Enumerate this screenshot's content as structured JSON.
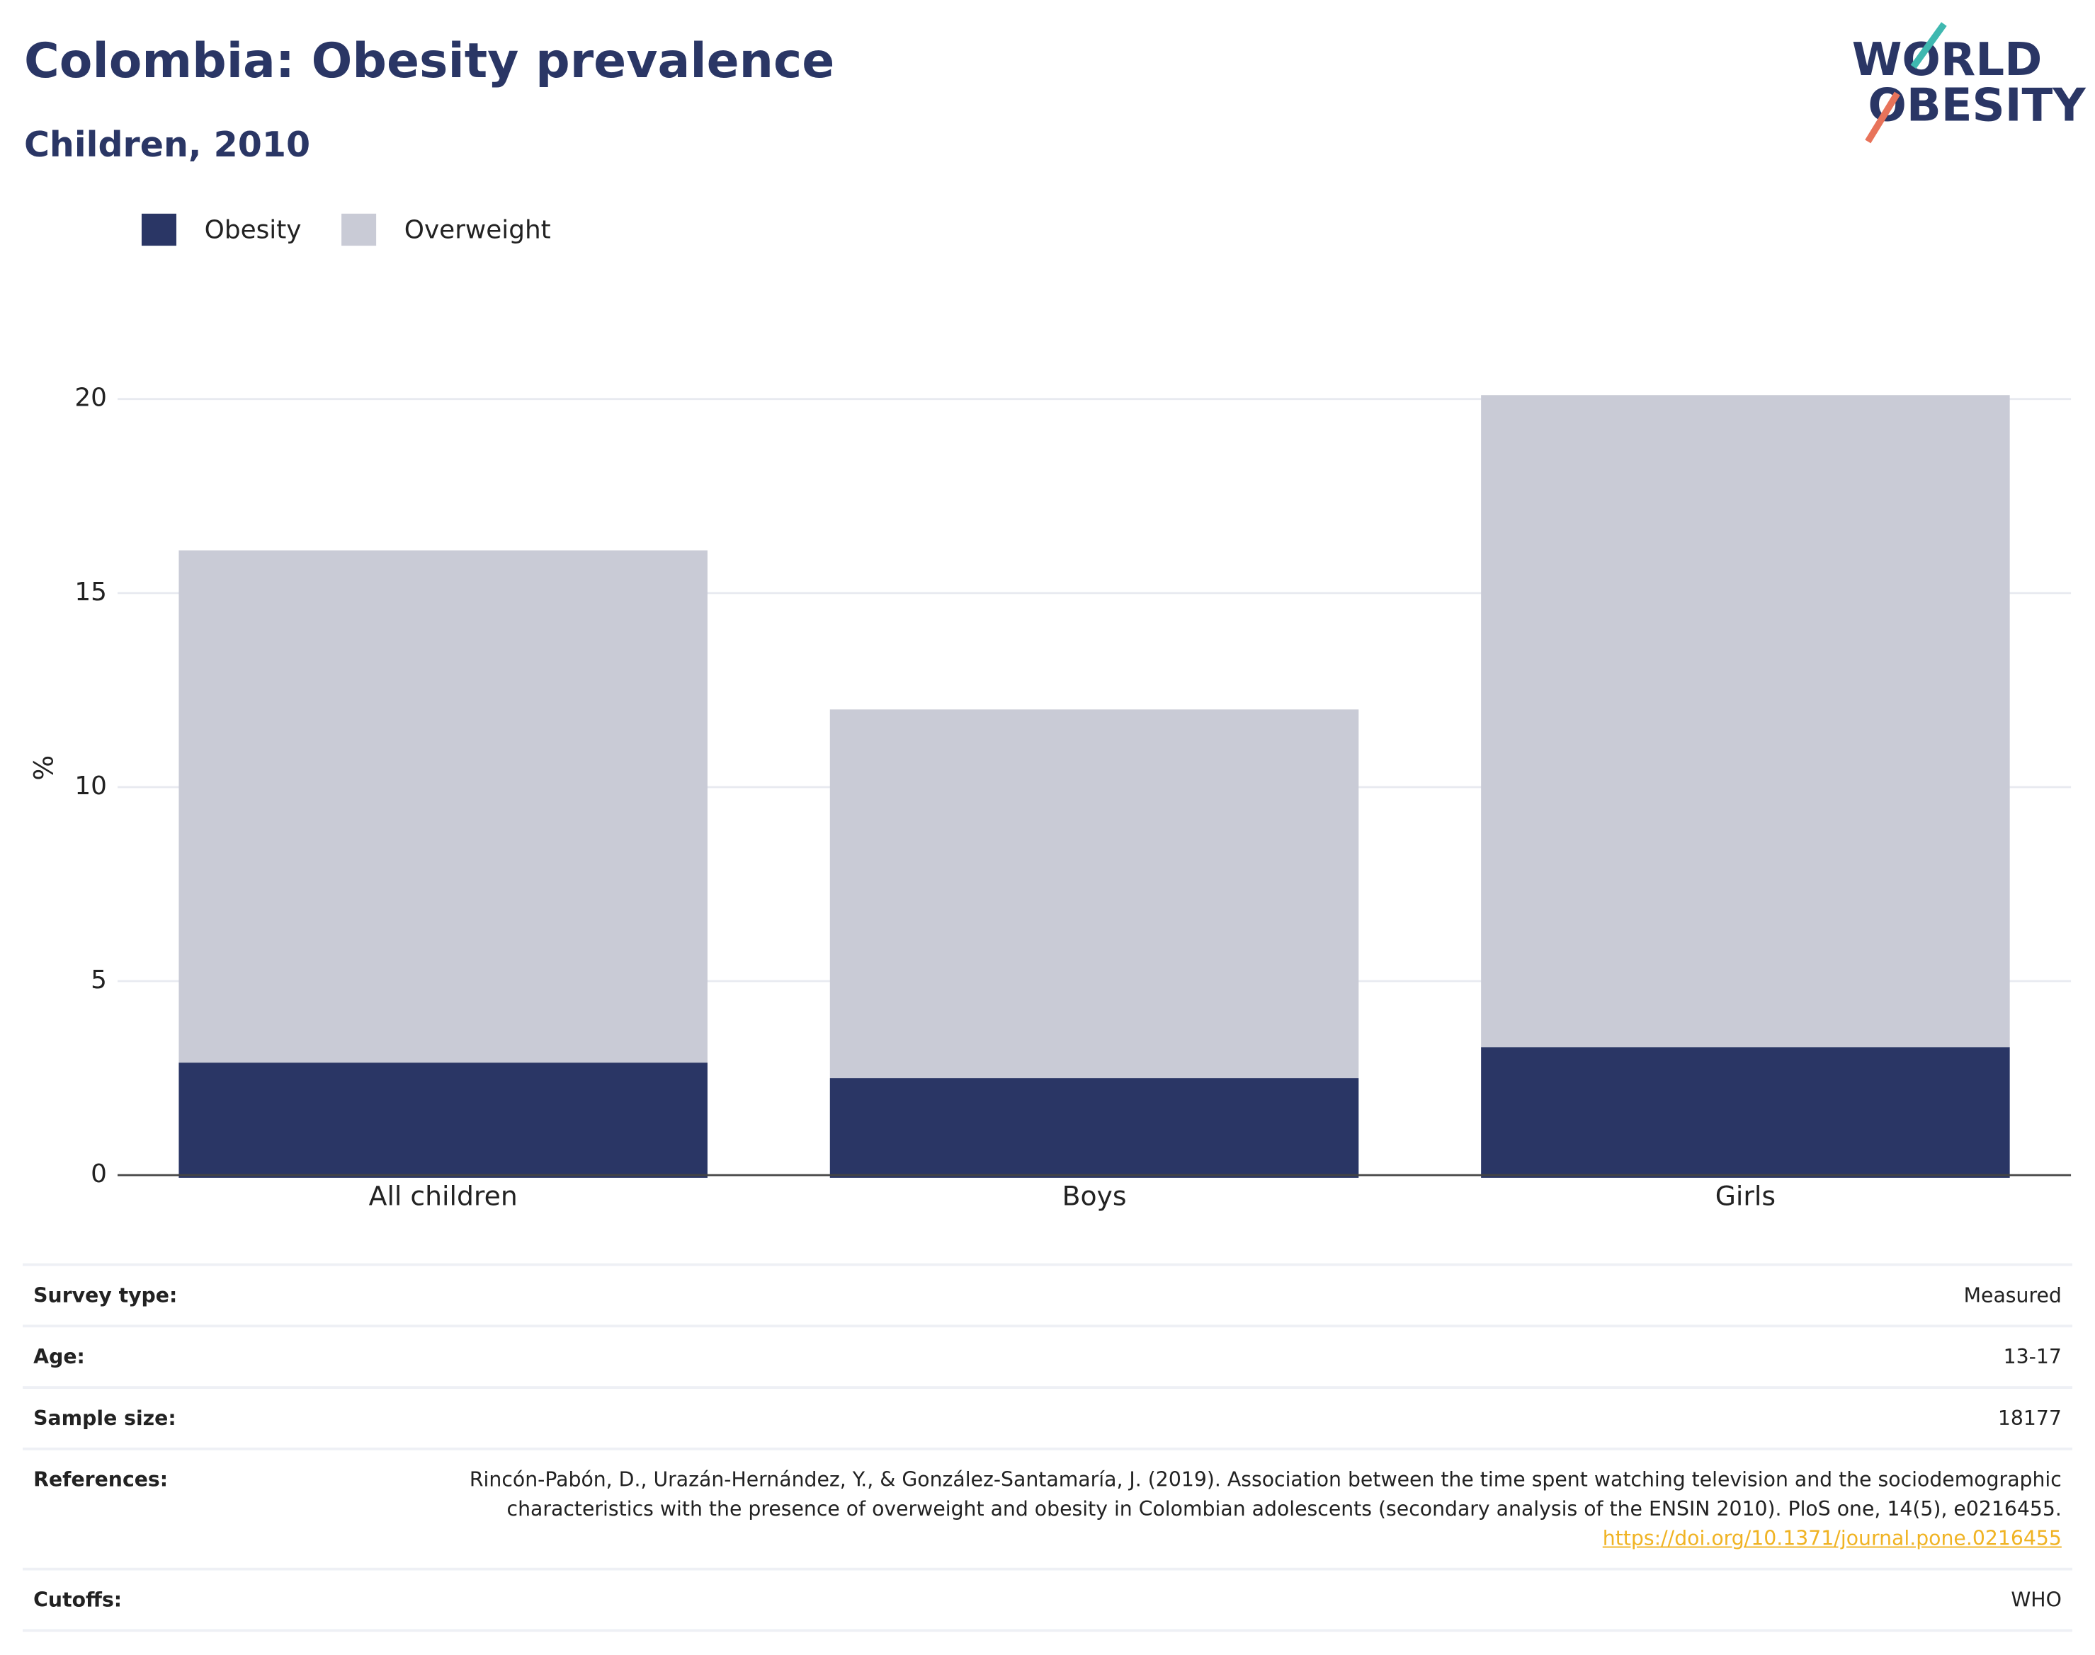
{
  "chart_data": {
    "type": "bar",
    "stacked": true,
    "title": "Colombia: Obesity prevalence",
    "subtitle": "Children, 2010",
    "y_label": "%",
    "categories": [
      "All children",
      "Boys",
      "Girls"
    ],
    "series": [
      {
        "name": "Obesity",
        "color": "#2a3665",
        "values": [
          2.9,
          2.5,
          3.3
        ]
      },
      {
        "name": "Overweight",
        "color": "#c9cbd6",
        "values": [
          13.2,
          9.5,
          16.8
        ]
      }
    ],
    "ylim": [
      0,
      23.4
    ],
    "yticks": [
      0,
      5,
      10,
      15,
      20
    ],
    "grid": true,
    "legend": "top-left"
  },
  "logo": {
    "line1": "WORLD",
    "line2": "OBESITY"
  },
  "table": {
    "rows": [
      {
        "label": "Survey type:",
        "value": "Measured"
      },
      {
        "label": "Age:",
        "value": "13-17"
      },
      {
        "label": "Sample size:",
        "value": "18177"
      },
      {
        "label": "References:",
        "value": "Rincón-Pabón, D., Urazán-Hernández, Y., & González-Santamaría, J. (2019). Association between the time spent watching television and the sociodemographic characteristics with the presence of overweight and obesity in Colombian adolescents (secondary analysis of the ENSIN 2010). PloS one, 14(5), e0216455.",
        "link": "https://doi.org/10.1371/journal.pone.0216455"
      },
      {
        "label": "Cutoffs:",
        "value": "WHO"
      }
    ]
  }
}
